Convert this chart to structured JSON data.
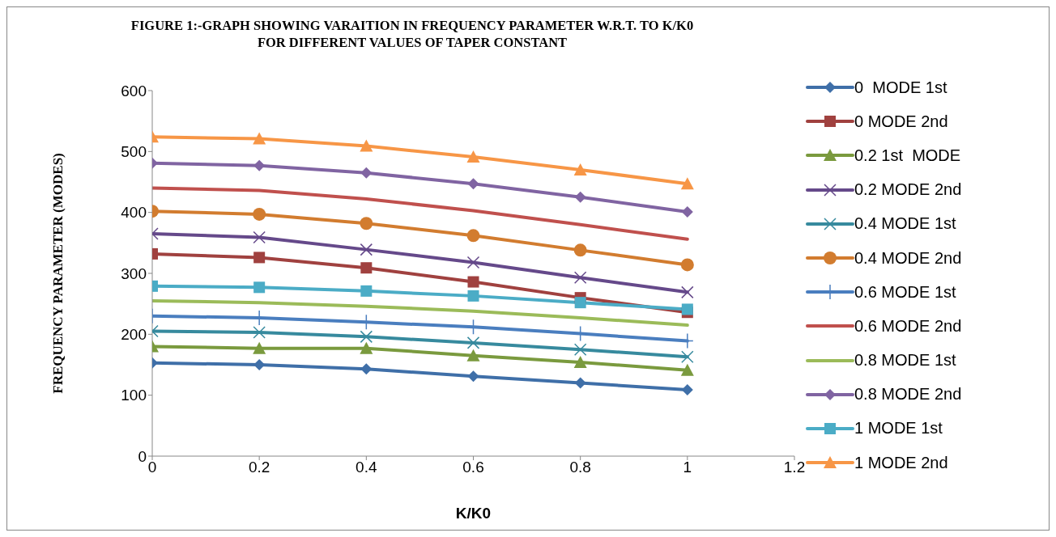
{
  "chart_data": {
    "type": "line",
    "title": "FIGURE 1:-GRAPH SHOWING VARAITION IN FREQUENCY PARAMETER W.R.T. TO K/K0\nFOR DIFFERENT VALUES OF TAPER CONSTANT",
    "xlabel": "K/K0",
    "ylabel": "FREQUENCY PARAMETER (MODES)",
    "x": [
      0,
      0.2,
      0.4,
      0.6,
      0.8,
      1
    ],
    "xlim": [
      0,
      1.2
    ],
    "xticks": [
      0,
      0.2,
      0.4,
      0.6,
      0.8,
      1,
      1.2
    ],
    "ylim": [
      0,
      600
    ],
    "yticks": [
      0,
      100,
      200,
      300,
      400,
      500,
      600
    ],
    "grid": false,
    "legend": "right",
    "line_style": "solid",
    "series": [
      {
        "name": "0  MODE 1st",
        "color": "#3f6fa8",
        "marker": "diamond",
        "values": [
          153,
          150,
          143,
          131,
          120,
          109
        ]
      },
      {
        "name": "0 MODE 2nd",
        "color": "#a0413f",
        "marker": "square",
        "values": [
          332,
          326,
          309,
          286,
          260,
          236
        ]
      },
      {
        "name": "0.2 1st  MODE",
        "color": "#7a9a3e",
        "marker": "triangle",
        "values": [
          180,
          177,
          177,
          165,
          154,
          141
        ]
      },
      {
        "name": "0.2 MODE 2nd",
        "color": "#65498a",
        "marker": "cross",
        "values": [
          365,
          359,
          339,
          318,
          293,
          269
        ]
      },
      {
        "name": "0.4 MODE 1st",
        "color": "#378a9e",
        "marker": "cross",
        "values": [
          205,
          203,
          196,
          186,
          175,
          163
        ]
      },
      {
        "name": "0.4 MODE 2nd",
        "color": "#d27c2f",
        "marker": "circle",
        "values": [
          402,
          397,
          382,
          362,
          338,
          314
        ]
      },
      {
        "name": "0.6 MODE 1st",
        "color": "#4a7ebf",
        "marker": "plus",
        "values": [
          230,
          227,
          220,
          212,
          201,
          189
        ]
      },
      {
        "name": "0.6 MODE 2nd",
        "color": "#c0504d",
        "marker": "none",
        "values": [
          440,
          436,
          422,
          403,
          380,
          356
        ]
      },
      {
        "name": "0.8 MODE 1st",
        "color": "#9bbb59",
        "marker": "none",
        "values": [
          255,
          252,
          246,
          238,
          227,
          215
        ]
      },
      {
        "name": "0.8 MODE 2nd",
        "color": "#8064a2",
        "marker": "diamond",
        "values": [
          481,
          477,
          465,
          447,
          425,
          401
        ]
      },
      {
        "name": "1 MODE 1st",
        "color": "#4bacc6",
        "marker": "square",
        "values": [
          279,
          277,
          271,
          263,
          252,
          241
        ]
      },
      {
        "name": "1 MODE 2nd",
        "color": "#f79646",
        "marker": "triangle",
        "values": [
          524,
          521,
          509,
          491,
          470,
          447
        ]
      }
    ]
  }
}
